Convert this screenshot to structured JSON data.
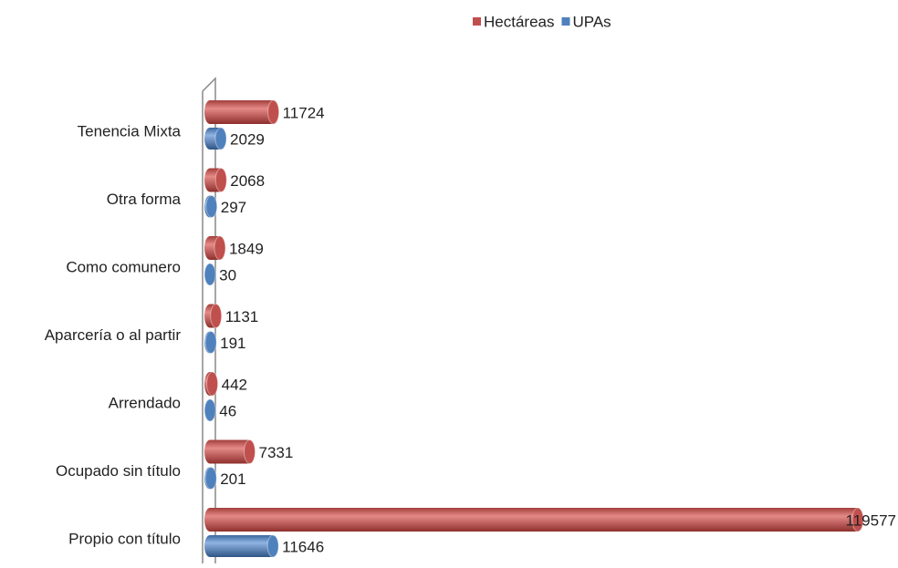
{
  "chart_data": {
    "type": "bar",
    "orientation": "horizontal",
    "categories": [
      "Tenencia Mixta",
      "Otra forma",
      "Como comunero",
      "Aparcería o al partir",
      "Arrendado",
      "Ocupado sin título",
      "Propio con título"
    ],
    "series": [
      {
        "name": "Hectáreas",
        "color": "#c0504d",
        "values": [
          11724,
          2068,
          1849,
          1131,
          442,
          7331,
          119577
        ]
      },
      {
        "name": "UPAs",
        "color": "#4f81bd",
        "values": [
          2029,
          297,
          30,
          191,
          46,
          201,
          11646
        ]
      }
    ],
    "legend": "top"
  }
}
